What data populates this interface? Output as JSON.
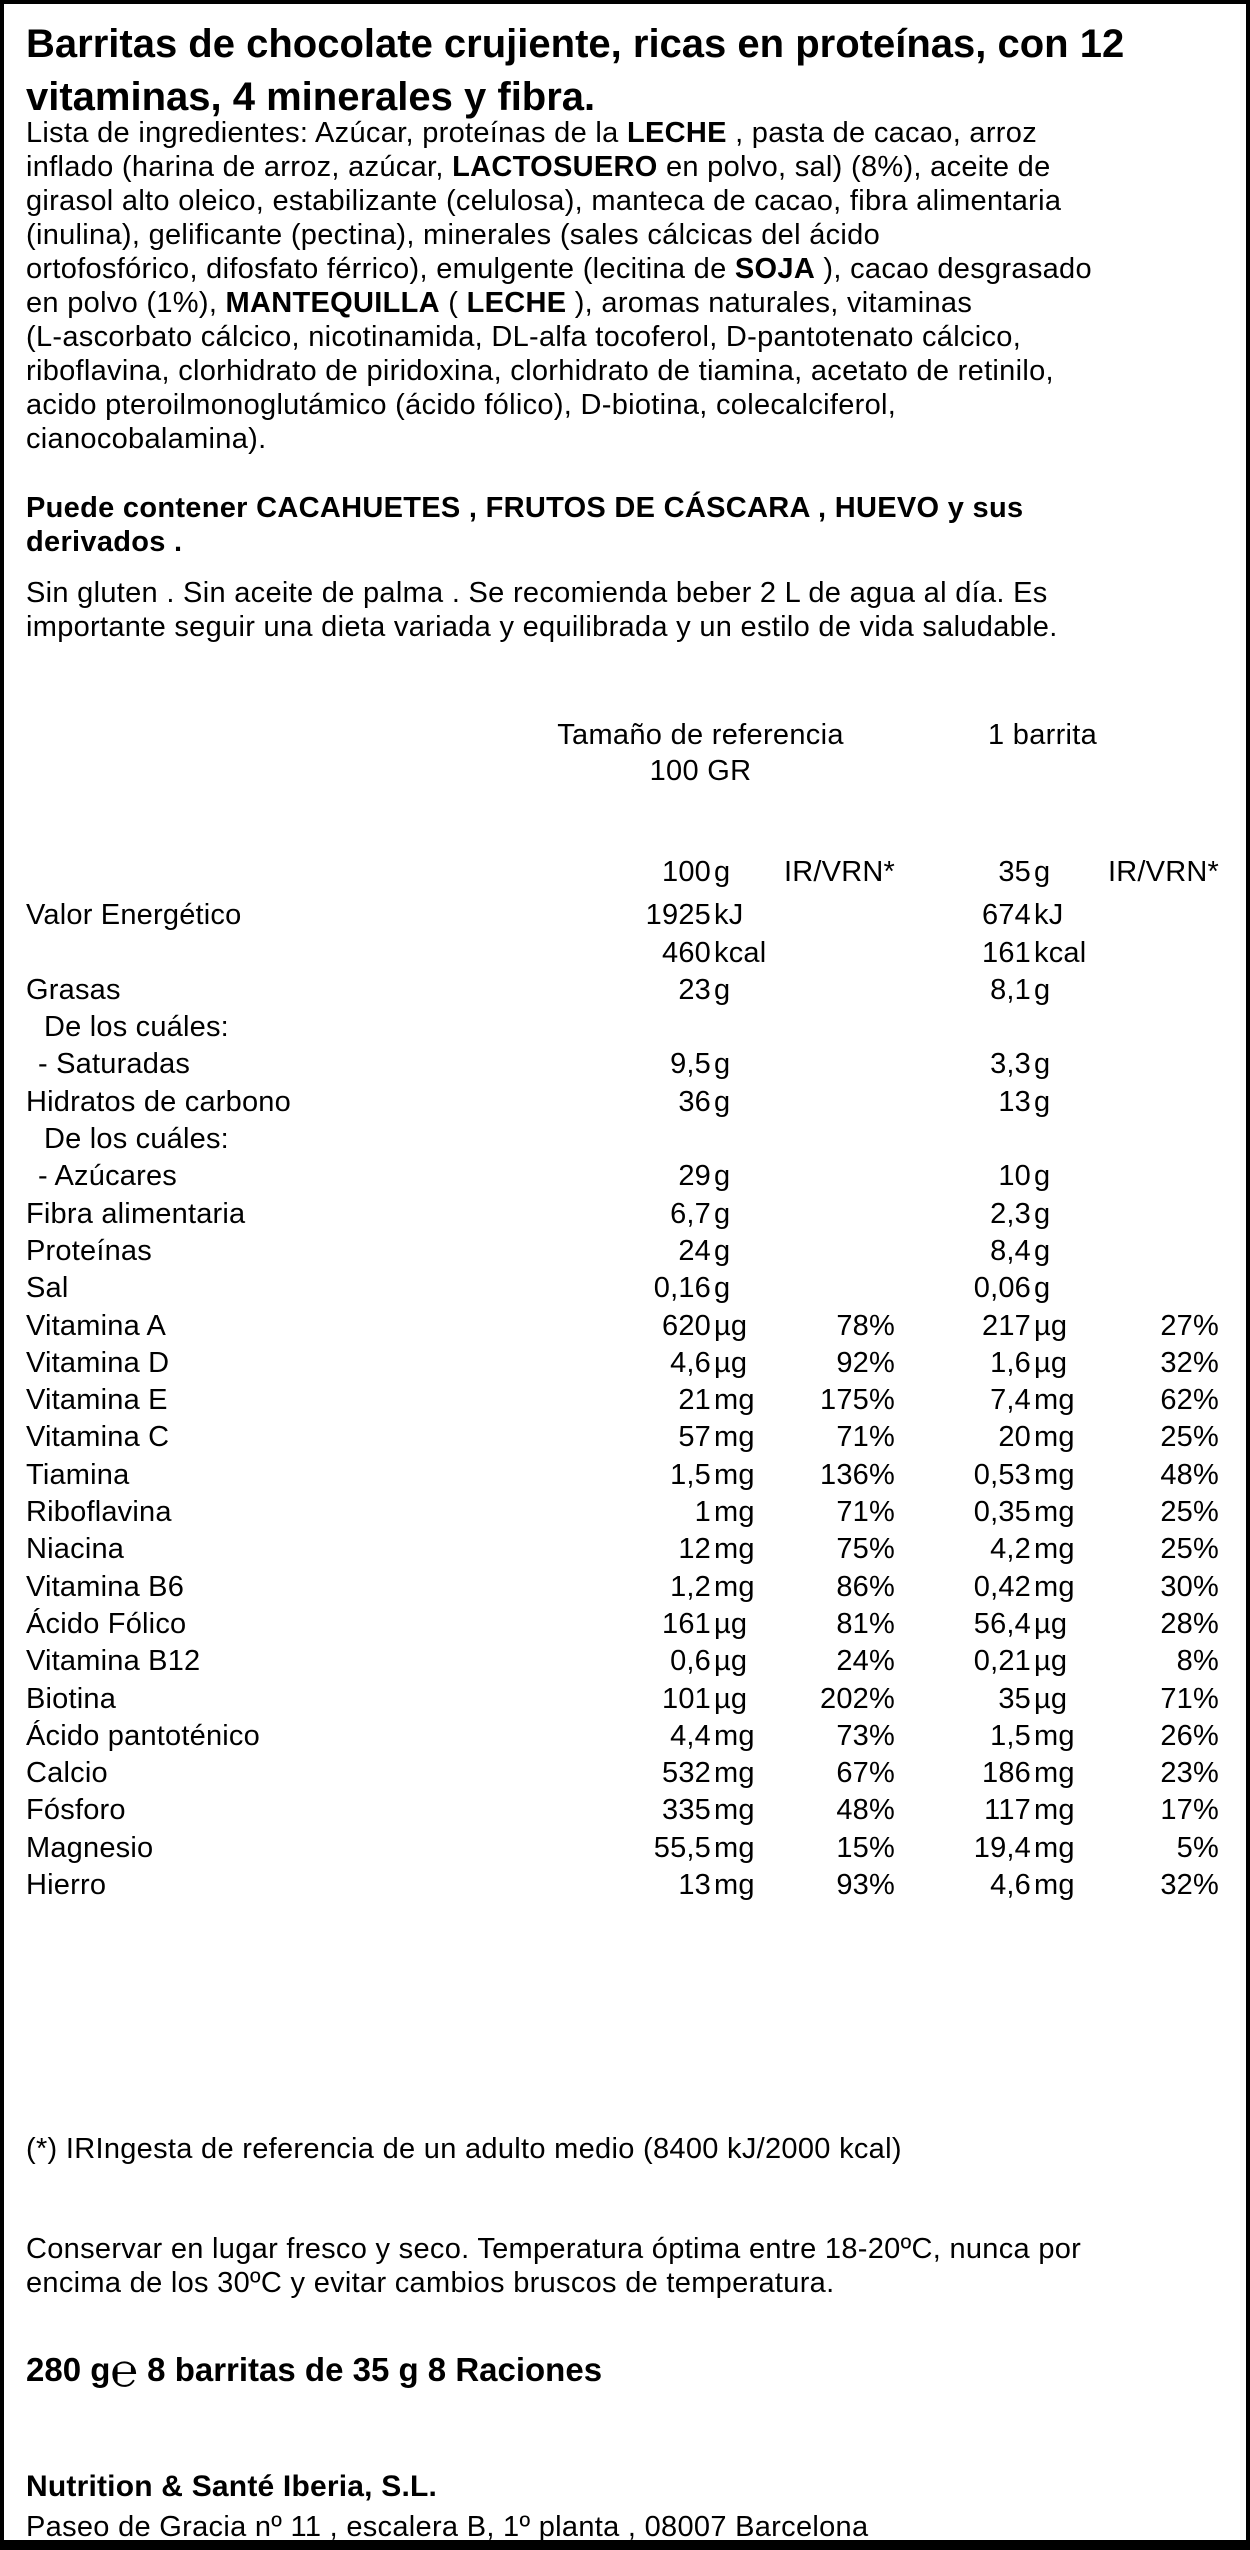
{
  "colors": {
    "text": "#000000",
    "background": "#ffffff",
    "border": "#000000"
  },
  "title": {
    "lines": [
      "Barritas de chocolate crujiente, ricas en proteínas, con 12",
      "vitaminas, 4 minerales y fibra."
    ]
  },
  "ingredients": {
    "lines": [
      "Lista de ingredientes: Azúcar, proteínas de la **LECHE** , pasta de cacao, arroz",
      "inflado (harina de arroz, azúcar, **LACTOSUERO** en polvo, sal) (8%), aceite de",
      "girasol alto oleico, estabilizante (celulosa), manteca de cacao, fibra alimentaria",
      "(inulina), gelificante (pectina), minerales (sales cálcicas del ácido",
      "ortofosfórico, difosfato férrico), emulgente (lecitina de **SOJA** ), cacao desgrasado",
      "en polvo (1%), **MANTEQUILLA** ( **LECHE** ), aromas naturales, vitaminas",
      "(L-ascorbato cálcico, nicotinamida, DL-alfa tocoferol, D-pantotenato cálcico,",
      "riboflavina, clorhidrato de piridoxina, clorhidrato de tiamina, acetato de retinilo,",
      "acido pteroilmonoglutámico (ácido fólico), D-biotina, colecalciferol,",
      "cianocobalamina)."
    ]
  },
  "allergens": {
    "lines": [
      "Puede contener CACAHUETES , FRUTOS DE CÁSCARA , HUEVO y sus",
      "derivados ."
    ]
  },
  "claims": {
    "lines": [
      "Sin gluten . Sin aceite de palma . Se recomienda beber 2 L de agua al día.  Es",
      "importante seguir una dieta variada y equilibrada y un estilo de vida saludable."
    ]
  },
  "nutrition": {
    "header": {
      "reference_label": "Tamaño de referencia",
      "reference_size": "100 GR",
      "serving_label": "1 barrita",
      "col1_value": "100",
      "col1_unit": "g",
      "col1_pct": "IR/VRN*",
      "col2_value": "35",
      "col2_unit": "g",
      "col2_pct": "IR/VRN*"
    },
    "rows": [
      {
        "label": "Valor Energético",
        "v1": "1925",
        "u1": "kJ",
        "p1": "",
        "v2": "674",
        "u2": "kJ",
        "p2": "",
        "ind": 0
      },
      {
        "label": "",
        "v1": "460",
        "u1": "kcal",
        "p1": "",
        "v2": "161",
        "u2": "kcal",
        "p2": "",
        "ind": 0
      },
      {
        "label": "Grasas",
        "v1": "23",
        "u1": "g",
        "p1": "",
        "v2": "8,1",
        "u2": "g",
        "p2": "",
        "ind": 0
      },
      {
        "label": "De los cuáles:",
        "v1": "",
        "u1": "",
        "p1": "",
        "v2": "",
        "u2": "",
        "p2": "",
        "ind": 1
      },
      {
        "label": "- Saturadas",
        "v1": "9,5",
        "u1": "g",
        "p1": "",
        "v2": "3,3",
        "u2": "g",
        "p2": "",
        "ind": 2
      },
      {
        "label": "Hidratos de carbono",
        "v1": "36",
        "u1": "g",
        "p1": "",
        "v2": "13",
        "u2": "g",
        "p2": "",
        "ind": 0
      },
      {
        "label": "De los cuáles:",
        "v1": "",
        "u1": "",
        "p1": "",
        "v2": "",
        "u2": "",
        "p2": "",
        "ind": 1
      },
      {
        "label": "- Azúcares",
        "v1": "29",
        "u1": "g",
        "p1": "",
        "v2": "10",
        "u2": "g",
        "p2": "",
        "ind": 2
      },
      {
        "label": "Fibra alimentaria",
        "v1": "6,7",
        "u1": "g",
        "p1": "",
        "v2": "2,3",
        "u2": "g",
        "p2": "",
        "ind": 0
      },
      {
        "label": "Proteínas",
        "v1": "24",
        "u1": "g",
        "p1": "",
        "v2": "8,4",
        "u2": "g",
        "p2": "",
        "ind": 0
      },
      {
        "label": "Sal",
        "v1": "0,16",
        "u1": "g",
        "p1": "",
        "v2": "0,06",
        "u2": "g",
        "p2": "",
        "ind": 0
      },
      {
        "label": "Vitamina A",
        "v1": "620",
        "u1": "µg",
        "p1": "78%",
        "v2": "217",
        "u2": "µg",
        "p2": "27%",
        "ind": 0
      },
      {
        "label": "Vitamina D",
        "v1": "4,6",
        "u1": "µg",
        "p1": "92%",
        "v2": "1,6",
        "u2": "µg",
        "p2": "32%",
        "ind": 0
      },
      {
        "label": "Vitamina E",
        "v1": "21",
        "u1": "mg",
        "p1": "175%",
        "v2": "7,4",
        "u2": "mg",
        "p2": "62%",
        "ind": 0
      },
      {
        "label": "Vitamina C",
        "v1": "57",
        "u1": "mg",
        "p1": "71%",
        "v2": "20",
        "u2": "mg",
        "p2": "25%",
        "ind": 0
      },
      {
        "label": "Tiamina",
        "v1": "1,5",
        "u1": "mg",
        "p1": "136%",
        "v2": "0,53",
        "u2": "mg",
        "p2": "48%",
        "ind": 0
      },
      {
        "label": "Riboflavina",
        "v1": "1",
        "u1": "mg",
        "p1": "71%",
        "v2": "0,35",
        "u2": "mg",
        "p2": "25%",
        "ind": 0
      },
      {
        "label": "Niacina",
        "v1": "12",
        "u1": "mg",
        "p1": "75%",
        "v2": "4,2",
        "u2": "mg",
        "p2": "25%",
        "ind": 0
      },
      {
        "label": "Vitamina B6",
        "v1": "1,2",
        "u1": "mg",
        "p1": "86%",
        "v2": "0,42",
        "u2": "mg",
        "p2": "30%",
        "ind": 0
      },
      {
        "label": "Ácido Fólico",
        "v1": "161",
        "u1": "µg",
        "p1": "81%",
        "v2": "56,4",
        "u2": "µg",
        "p2": "28%",
        "ind": 0
      },
      {
        "label": "Vitamina B12",
        "v1": "0,6",
        "u1": "µg",
        "p1": "24%",
        "v2": "0,21",
        "u2": "µg",
        "p2": "8%",
        "ind": 0
      },
      {
        "label": "Biotina",
        "v1": "101",
        "u1": "µg",
        "p1": "202%",
        "v2": "35",
        "u2": "µg",
        "p2": "71%",
        "ind": 0
      },
      {
        "label": "Ácido pantoténico",
        "v1": "4,4",
        "u1": "mg",
        "p1": "73%",
        "v2": "1,5",
        "u2": "mg",
        "p2": "26%",
        "ind": 0
      },
      {
        "label": "Calcio",
        "v1": "532",
        "u1": "mg",
        "p1": "67%",
        "v2": "186",
        "u2": "mg",
        "p2": "23%",
        "ind": 0
      },
      {
        "label": "Fósforo",
        "v1": "335",
        "u1": "mg",
        "p1": "48%",
        "v2": "117",
        "u2": "mg",
        "p2": "17%",
        "ind": 0
      },
      {
        "label": "Magnesio",
        "v1": "55,5",
        "u1": "mg",
        "p1": "15%",
        "v2": "19,4",
        "u2": "mg",
        "p2": "5%",
        "ind": 0
      },
      {
        "label": "Hierro",
        "v1": "13",
        "u1": "mg",
        "p1": "93%",
        "v2": "4,6",
        "u2": "mg",
        "p2": "32%",
        "ind": 0
      }
    ]
  },
  "footnote": "(*) IRIngesta de referencia de un adulto medio (8400 kJ/2000 kcal)",
  "storage": {
    "lines": [
      "Conservar en lugar fresco y seco. Temperatura óptima entre 18-20ºC, nunca por",
      "encima de los 30ºC y evitar cambios bruscos de temperatura."
    ]
  },
  "net_weight": {
    "prefix": "280 g",
    "esign": "℮",
    "suffix": " 8 barritas de 35 g  8 Raciones"
  },
  "manufacturer": {
    "name": "Nutrition & Santé Iberia, S.L.",
    "address": "Paseo de Gracia nº 11 , escalera B, 1º planta , 08007 Barcelona"
  }
}
